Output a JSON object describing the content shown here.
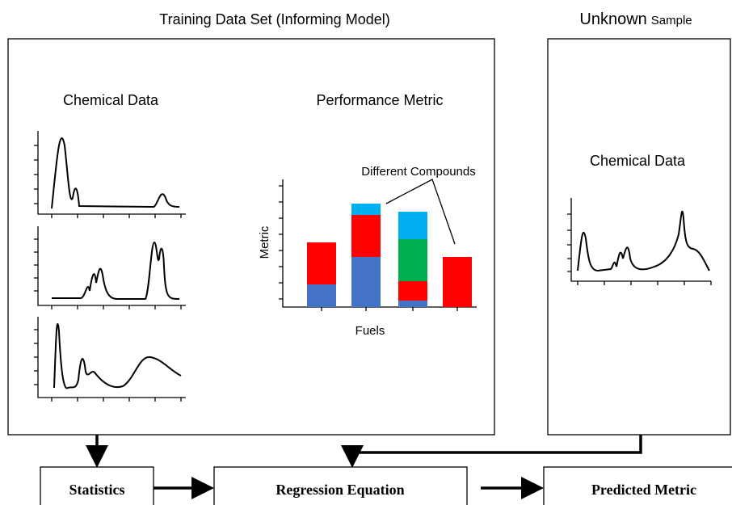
{
  "header": {
    "training_title": "Training Data Set (Informing Model)",
    "unknown_title_main": "Unknown",
    "unknown_title_small": "Sample"
  },
  "training": {
    "chemical_label": "Chemical Data",
    "performance_label": "Performance Metric",
    "compounds_label": "Different Compounds",
    "y_axis_label": "Metric",
    "x_axis_label": "Fuels"
  },
  "unknown": {
    "chemical_label": "Chemical Data"
  },
  "flow": {
    "statistics": "Statistics",
    "regression": "Regression Equation",
    "predicted": "Predicted Metric"
  }
}
